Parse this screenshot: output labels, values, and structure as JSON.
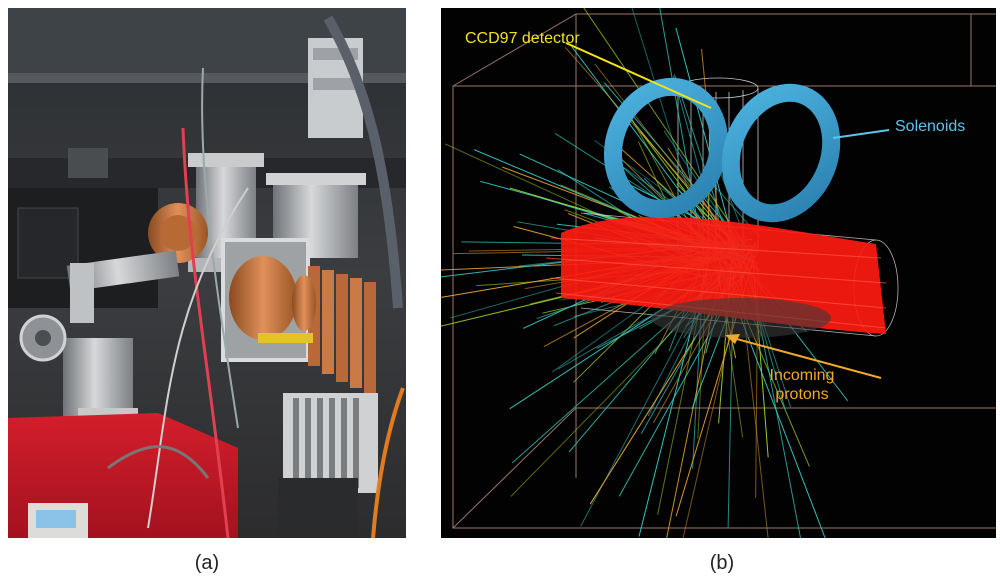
{
  "figure": {
    "panel_a": {
      "caption": "(a)",
      "image": "photo of experimental beamline apparatus with vacuum chambers, copper cooling fins, cables and a red cart"
    },
    "panel_b": {
      "caption": "(b)",
      "image": "3D simulation view of proton beam interacting in a target chamber with solenoids",
      "labels": {
        "detector": "CCD97 detector",
        "solenoids": "Solenoids",
        "protons_line1": "Incoming",
        "protons_line2": "protons"
      },
      "colors": {
        "detector_label": "#f4e21a",
        "solenoid_label": "#5ec4ec",
        "protons_label": "#f0a92a",
        "beam": "#ff1a10",
        "solenoid_ring": "#3aa3d2"
      }
    }
  }
}
